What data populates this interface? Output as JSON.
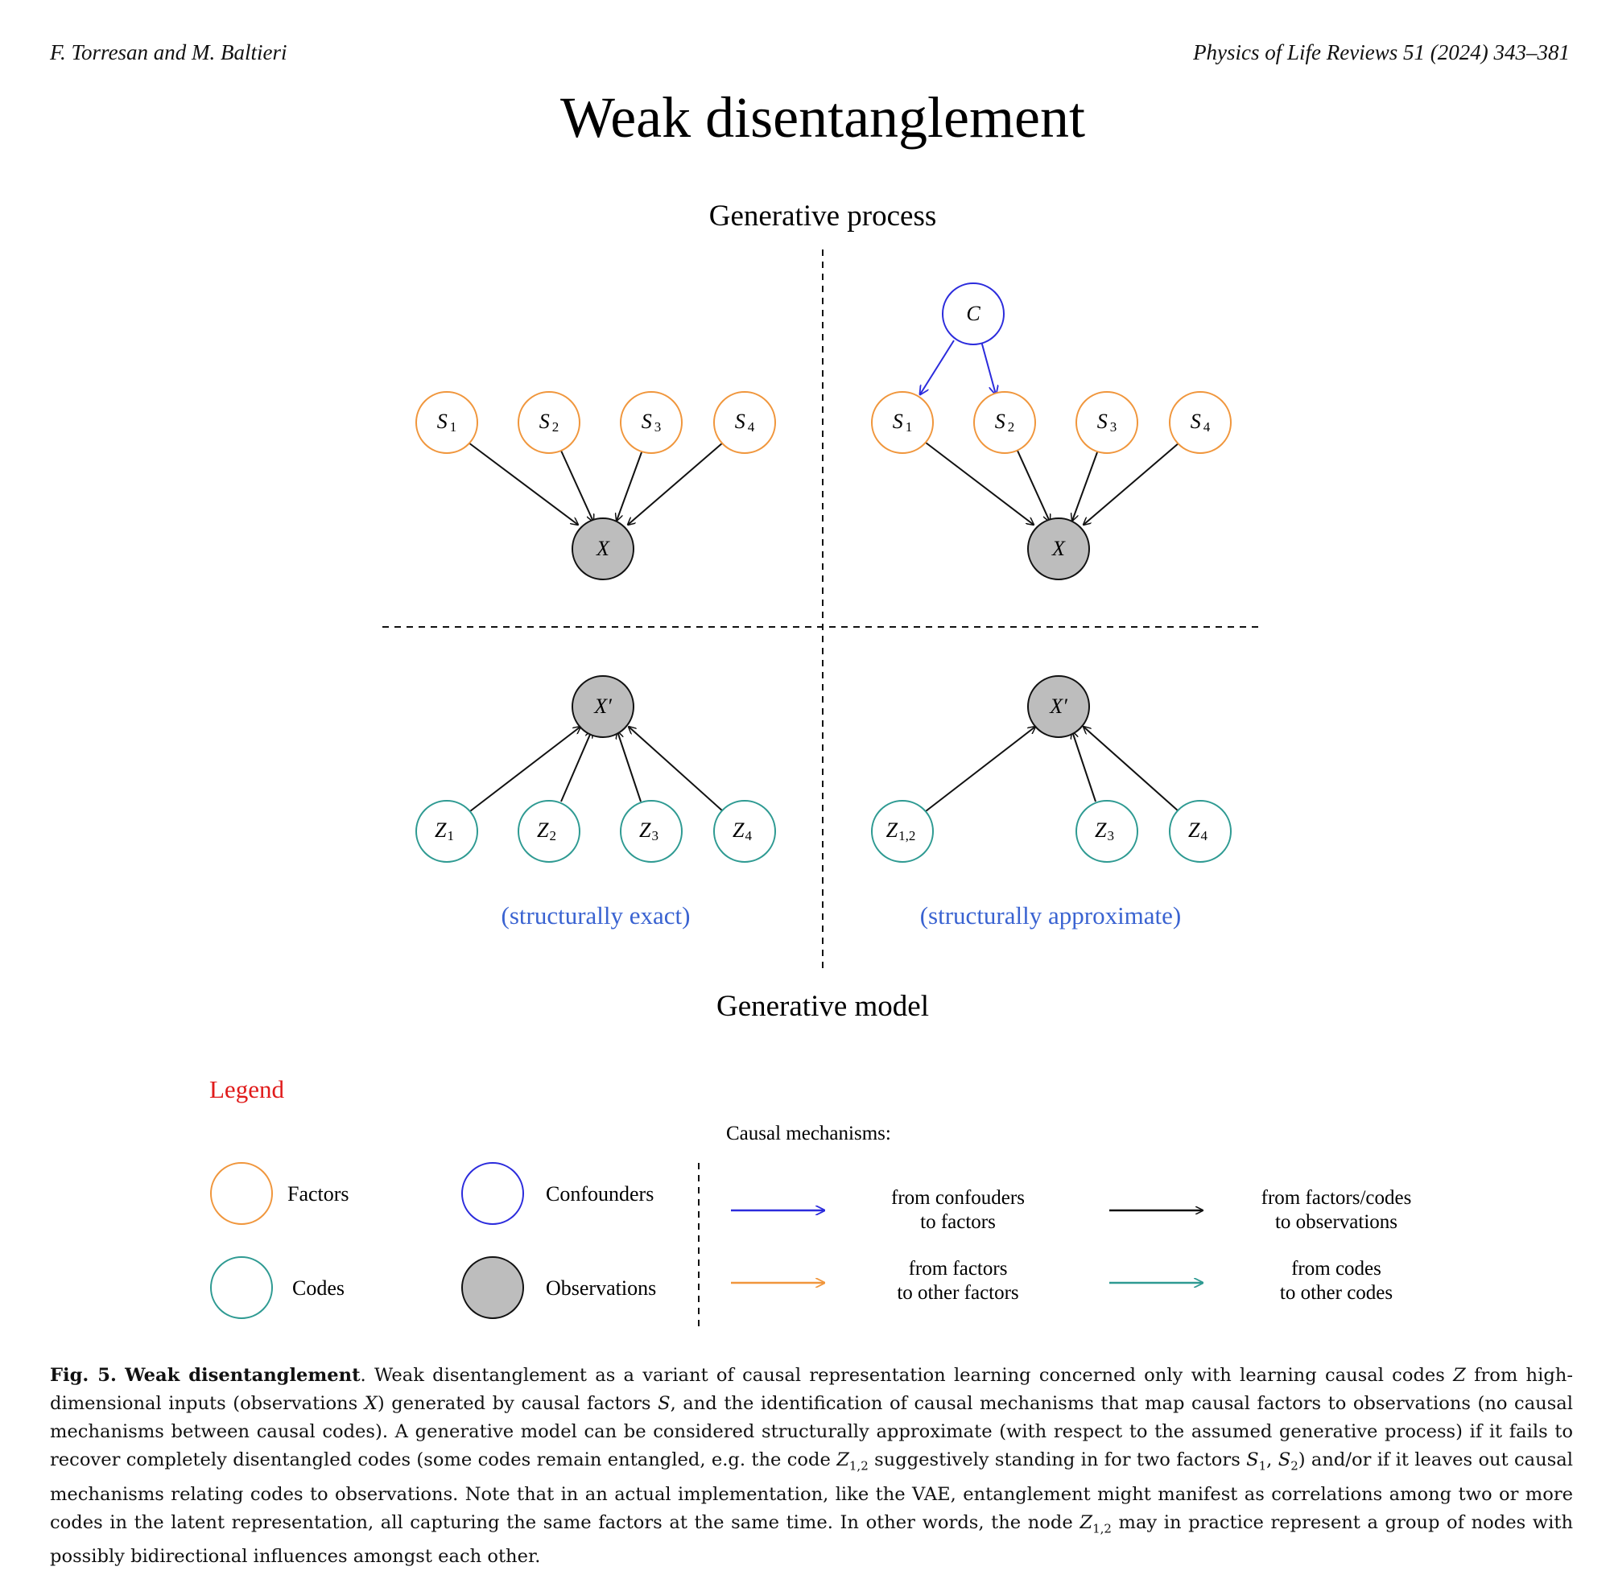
{
  "header": {
    "authors": "F. Torresan and M. Baltieri",
    "journal": "Physics of Life Reviews 51 (2024) 343–381"
  },
  "figure": {
    "title": "Weak disentanglement",
    "top_label": "Generative process",
    "bottom_label": "Generative model",
    "left_panel_label": "(structurally exact)",
    "right_panel_label": "(structurally approximate)",
    "nodes": {
      "S": "S",
      "subs": [
        "1",
        "2",
        "3",
        "4"
      ],
      "X": "X",
      "Xprime": "X′",
      "C": "C",
      "Z": "Z",
      "Z12_sub": "1,2"
    },
    "colors": {
      "factors": "#f0963c",
      "codes": "#2e9a92",
      "confounders": "#2b2bdc",
      "observations_fill": "#bdbdbd",
      "caption_blue": "#3a63d1",
      "legend_red": "#e01b1b"
    }
  },
  "legend": {
    "title": "Legend",
    "factors": "Factors",
    "confounders": "Confounders",
    "codes": "Codes",
    "observations": "Observations",
    "mech_title": "Causal mechanisms:",
    "m1": [
      "from confouders",
      "to factors"
    ],
    "m2": [
      "from factors/codes",
      "to observations"
    ],
    "m3": [
      "from factors",
      "to other factors"
    ],
    "m4": [
      "from codes",
      "to other codes"
    ]
  },
  "caption": {
    "fig_label": "Fig. 5.",
    "title": "Weak disentanglement",
    "p1": ". Weak disentanglement as a variant of causal representation learning concerned only with learning causal codes ",
    "v_Z": "Z",
    "p2": " from high-dimensional inputs (observations ",
    "v_X": "X",
    "p3": ") generated by causal factors ",
    "v_S": "S",
    "p4": ", and the identification of causal mechanisms that map causal factors to observations (no causal mechanisms between causal codes). A generative model can be considered structurally approximate (with respect to the assumed generative process) if it fails to recover completely disentangled codes (some codes remain entangled, e.g. the code ",
    "sub_12": "1,2",
    "p5": " suggestively standing in for two factors ",
    "sub_1": "1",
    "sep": ", ",
    "sub_2": "2",
    "p6": ") and/or if it leaves out causal mechanisms relating codes to observations. Note that in an actual implementation, like the VAE, entanglement might manifest as correlations among two or more codes in the latent representation, all capturing the same factors at the same time. In other words, the node ",
    "p7": " may in practice represent a group of nodes with possibly bidirectional influences amongst each other."
  }
}
